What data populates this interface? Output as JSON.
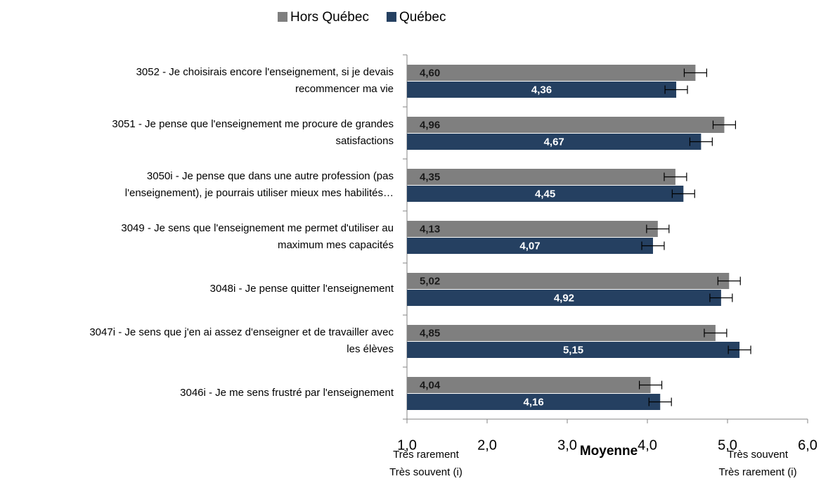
{
  "chart_data": {
    "type": "bar",
    "orientation": "horizontal",
    "xlabel": "Moyenne",
    "annotations": {
      "left": [
        "Très rarement",
        "Très souvent (i)"
      ],
      "right": [
        "Très souvent",
        "Très rarement (i)"
      ]
    },
    "categories": [
      [
        "3052 - Je choisirais encore l'enseignement, si je devais",
        "recommencer ma vie"
      ],
      [
        "3051 - Je pense que l'enseignement me procure de grandes",
        "satisfactions"
      ],
      [
        "3050i - Je pense que dans une autre profession (pas",
        "l'enseignement), je pourrais utiliser mieux mes habilités…"
      ],
      [
        "3049 - Je sens que l'enseignement me permet d'utiliser au",
        "maximum mes capacités"
      ],
      [
        "3048i - Je pense quitter l'enseignement"
      ],
      [
        "3047i - Je sens que j'en ai assez d'enseigner et de travailler avec",
        "les élèves"
      ],
      [
        "3046i - Je me sens frustré par l'enseignement"
      ]
    ],
    "series": [
      {
        "name": "Hors Québec",
        "color": "#7f7f7f",
        "label_color": "#1a1a1a",
        "values": [
          4.6,
          4.96,
          4.35,
          4.13,
          5.02,
          4.85,
          4.04
        ],
        "value_labels": [
          "4,60",
          "4,96",
          "4,35",
          "4,13",
          "5,02",
          "4,85",
          "4,04"
        ],
        "errors": [
          0.14,
          0.14,
          0.14,
          0.14,
          0.14,
          0.14,
          0.14
        ]
      },
      {
        "name": "Québec",
        "color": "#254061",
        "label_color": "#ffffff",
        "values": [
          4.36,
          4.67,
          4.45,
          4.07,
          4.92,
          5.15,
          4.16
        ],
        "value_labels": [
          "4,36",
          "4,67",
          "4,45",
          "4,07",
          "4,92",
          "5,15",
          "4,16"
        ],
        "errors": [
          0.14,
          0.14,
          0.14,
          0.14,
          0.14,
          0.14,
          0.14
        ]
      }
    ],
    "xlim": [
      1.0,
      6.0
    ],
    "xticks": [
      {
        "value": 1.0,
        "label": "1,0"
      },
      {
        "value": 2.0,
        "label": "2,0"
      },
      {
        "value": 3.0,
        "label": "3,0"
      },
      {
        "value": 4.0,
        "label": "4,0"
      },
      {
        "value": 5.0,
        "label": "5,0"
      },
      {
        "value": 6.0,
        "label": "6,0"
      }
    ],
    "legend": "top"
  }
}
